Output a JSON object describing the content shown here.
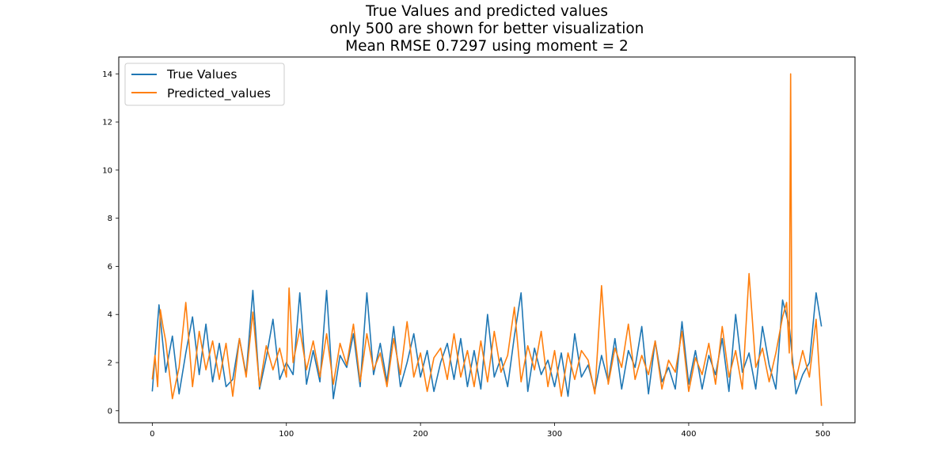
{
  "chart_data": {
    "type": "line",
    "title": [
      "True Values and predicted values",
      "only 500 are shown for better visualization",
      "Mean RMSE 0.7297 using moment = 2"
    ],
    "xlabel": "",
    "ylabel": "",
    "xlim": [
      -25,
      524
    ],
    "ylim": [
      -0.5,
      14.7
    ],
    "xticks": [
      0,
      100,
      200,
      300,
      400,
      500
    ],
    "yticks": [
      0,
      2,
      4,
      6,
      8,
      10,
      12,
      14
    ],
    "grid": false,
    "legend_position": "upper-left",
    "series": [
      {
        "name": "True Values",
        "color": "#1f77b4",
        "x": [
          0,
          5,
          10,
          15,
          20,
          25,
          30,
          35,
          40,
          45,
          50,
          55,
          60,
          65,
          70,
          75,
          80,
          85,
          90,
          95,
          100,
          105,
          110,
          115,
          120,
          125,
          130,
          135,
          140,
          145,
          150,
          155,
          160,
          165,
          170,
          175,
          180,
          185,
          190,
          195,
          200,
          205,
          210,
          215,
          220,
          225,
          230,
          235,
          240,
          245,
          250,
          255,
          260,
          265,
          270,
          275,
          280,
          285,
          290,
          295,
          300,
          305,
          310,
          315,
          320,
          325,
          330,
          335,
          340,
          345,
          350,
          355,
          360,
          365,
          370,
          375,
          380,
          385,
          390,
          395,
          400,
          405,
          410,
          415,
          420,
          425,
          430,
          435,
          440,
          445,
          450,
          455,
          460,
          465,
          470,
          475,
          480,
          485,
          490,
          495,
          499
        ],
        "y": [
          0.8,
          4.4,
          1.6,
          3.1,
          0.7,
          2.4,
          3.9,
          1.5,
          3.6,
          1.2,
          2.8,
          1.0,
          1.3,
          3.0,
          1.5,
          5.0,
          0.9,
          2.2,
          3.8,
          1.3,
          2.0,
          1.5,
          4.9,
          1.1,
          2.5,
          1.2,
          5.0,
          0.5,
          2.3,
          1.8,
          3.2,
          1.0,
          4.9,
          1.5,
          2.8,
          1.2,
          3.5,
          1.0,
          2.0,
          3.2,
          1.4,
          2.5,
          0.8,
          2.0,
          2.8,
          1.3,
          3.0,
          1.0,
          2.5,
          0.9,
          4.0,
          1.4,
          2.2,
          1.0,
          3.1,
          4.9,
          0.8,
          2.6,
          1.5,
          2.1,
          1.0,
          2.4,
          0.6,
          3.2,
          1.4,
          1.9,
          0.8,
          2.3,
          1.2,
          3.0,
          0.9,
          2.5,
          1.8,
          3.5,
          0.7,
          2.9,
          1.2,
          1.8,
          0.9,
          3.7,
          1.1,
          2.5,
          0.9,
          2.3,
          1.5,
          3.0,
          0.8,
          4.0,
          1.6,
          2.4,
          0.9,
          3.5,
          1.9,
          0.9,
          4.6,
          3.5,
          0.7,
          1.5,
          2.0,
          4.9,
          3.5
        ]
      },
      {
        "name": "Predicted_values",
        "color": "#ff7f0e",
        "x": [
          0,
          2,
          4,
          6,
          8,
          10,
          15,
          20,
          25,
          30,
          35,
          40,
          45,
          50,
          55,
          60,
          65,
          70,
          75,
          80,
          85,
          90,
          95,
          100,
          102,
          105,
          110,
          115,
          120,
          125,
          130,
          135,
          140,
          145,
          150,
          155,
          160,
          165,
          170,
          175,
          180,
          185,
          190,
          195,
          200,
          205,
          210,
          215,
          220,
          225,
          230,
          235,
          240,
          245,
          250,
          255,
          260,
          265,
          270,
          275,
          280,
          285,
          290,
          295,
          300,
          305,
          310,
          315,
          320,
          325,
          330,
          335,
          340,
          345,
          350,
          355,
          360,
          365,
          370,
          375,
          380,
          385,
          390,
          395,
          400,
          405,
          410,
          415,
          420,
          425,
          430,
          435,
          440,
          445,
          450,
          455,
          460,
          465,
          470,
          473,
          475,
          476,
          477,
          480,
          485,
          490,
          495,
          499
        ],
        "y": [
          1.3,
          2.3,
          1.0,
          4.2,
          3.5,
          2.9,
          0.5,
          1.8,
          4.5,
          1.0,
          3.3,
          1.7,
          2.9,
          1.3,
          2.8,
          0.6,
          3.0,
          1.4,
          4.1,
          1.0,
          2.7,
          1.7,
          2.6,
          1.4,
          5.1,
          2.0,
          3.4,
          1.7,
          2.9,
          1.4,
          3.2,
          1.1,
          2.8,
          1.9,
          3.6,
          1.2,
          3.2,
          1.7,
          2.4,
          1.0,
          3.0,
          1.5,
          3.7,
          1.4,
          2.4,
          0.8,
          2.2,
          2.6,
          1.3,
          3.2,
          1.4,
          2.5,
          1.0,
          2.9,
          1.2,
          3.3,
          1.6,
          2.3,
          4.3,
          1.2,
          2.7,
          1.7,
          3.3,
          1.0,
          2.5,
          0.6,
          2.4,
          1.3,
          2.5,
          2.1,
          0.7,
          5.2,
          1.1,
          2.6,
          1.8,
          3.6,
          1.3,
          2.3,
          1.5,
          2.9,
          0.9,
          2.1,
          1.6,
          3.3,
          0.8,
          2.2,
          1.5,
          2.8,
          1.1,
          3.5,
          1.4,
          2.5,
          0.9,
          5.7,
          1.8,
          2.6,
          1.2,
          2.4,
          3.9,
          4.5,
          2.4,
          14.0,
          2.0,
          1.3,
          2.5,
          1.4,
          3.8,
          0.2
        ]
      }
    ]
  }
}
